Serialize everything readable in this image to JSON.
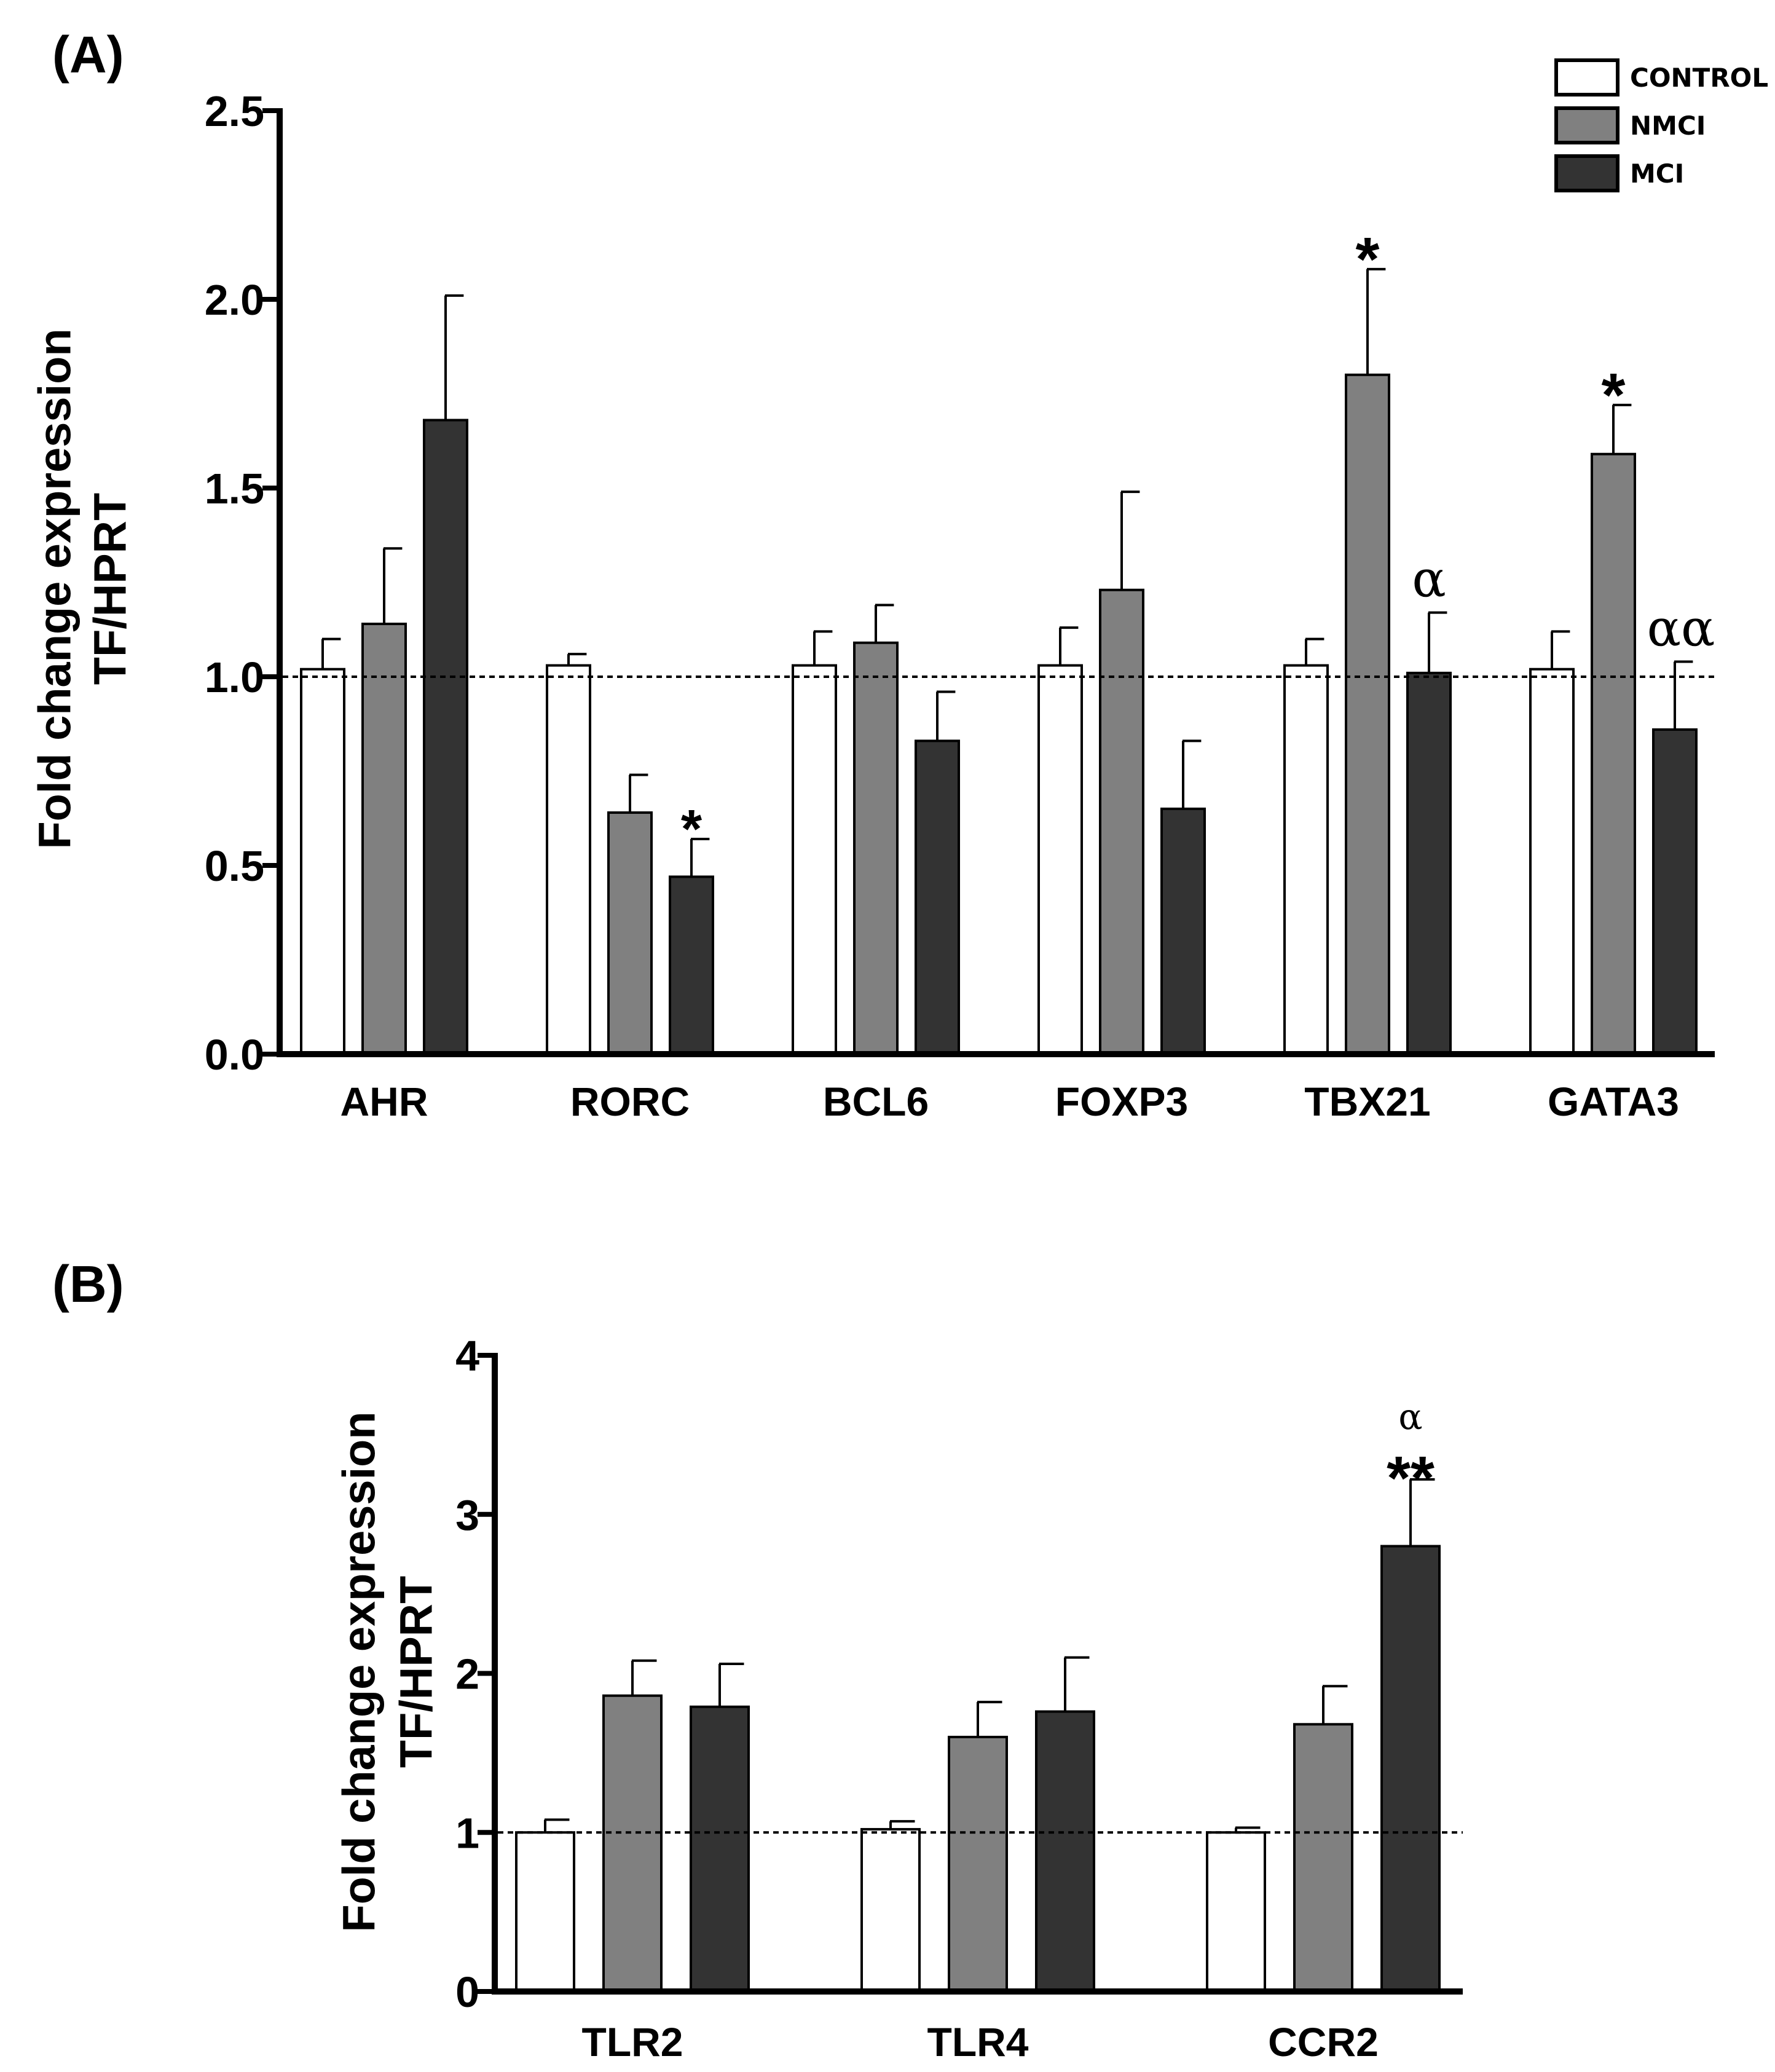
{
  "legend": {
    "entries": [
      {
        "label": "CONTROL",
        "color": "#ffffff"
      },
      {
        "label": "NMCI",
        "color": "#808080"
      },
      {
        "label": "MCI",
        "color": "#333333"
      }
    ]
  },
  "chart_data": [
    {
      "panel_label": "(A)",
      "type": "bar",
      "ylabel": [
        "Fold change expression",
        "TF/HPRT"
      ],
      "ylim": [
        0,
        2.5
      ],
      "yticks": [
        "0.0",
        "0.5",
        "1.0",
        "1.5",
        "2.0",
        "2.5"
      ],
      "reference_line": 1.0,
      "categories": [
        "AHR",
        "RORC",
        "BCL6",
        "FOXP3",
        "TBX21",
        "GATA3"
      ],
      "series": [
        {
          "name": "CONTROL",
          "color": "#ffffff",
          "values": [
            1.02,
            1.03,
            1.03,
            1.03,
            1.03,
            1.02
          ],
          "errors": [
            0.08,
            0.03,
            0.09,
            0.1,
            0.07,
            0.1
          ]
        },
        {
          "name": "NMCI",
          "color": "#808080",
          "values": [
            1.14,
            0.64,
            1.09,
            1.23,
            1.8,
            1.59
          ],
          "errors": [
            0.2,
            0.1,
            0.1,
            0.26,
            0.28,
            0.13
          ]
        },
        {
          "name": "MCI",
          "color": "#333333",
          "values": [
            1.68,
            0.47,
            0.83,
            0.65,
            1.01,
            0.86
          ],
          "errors": [
            0.33,
            0.1,
            0.13,
            0.18,
            0.16,
            0.18
          ]
        }
      ],
      "annotations": [
        {
          "category": "RORC",
          "series": "MCI",
          "text": "*"
        },
        {
          "category": "TBX21",
          "series": "NMCI",
          "text": "*"
        },
        {
          "category": "TBX21",
          "series": "MCI",
          "text": "α"
        },
        {
          "category": "GATA3",
          "series": "NMCI",
          "text": "*"
        },
        {
          "category": "GATA3",
          "series": "MCI",
          "text": "αα"
        }
      ]
    },
    {
      "panel_label": "(B)",
      "type": "bar",
      "ylabel": [
        "Fold change expression",
        "TF/HPRT"
      ],
      "ylim": [
        0,
        4
      ],
      "yticks": [
        "0",
        "1",
        "2",
        "3",
        "4"
      ],
      "reference_line": 1.0,
      "categories": [
        "TLR2",
        "TLR4",
        "CCR2"
      ],
      "series": [
        {
          "name": "CONTROL",
          "color": "#ffffff",
          "values": [
            1.0,
            1.02,
            1.0
          ],
          "errors": [
            0.08,
            0.05,
            0.03
          ]
        },
        {
          "name": "NMCI",
          "color": "#808080",
          "values": [
            1.86,
            1.6,
            1.68
          ],
          "errors": [
            0.22,
            0.22,
            0.24
          ]
        },
        {
          "name": "MCI",
          "color": "#333333",
          "values": [
            1.79,
            1.76,
            2.8
          ],
          "errors": [
            0.27,
            0.34,
            0.42
          ]
        }
      ],
      "annotations": [
        {
          "category": "CCR2",
          "series": "MCI",
          "text": "**"
        },
        {
          "category": "CCR2",
          "series": "MCI",
          "text": "α"
        }
      ]
    }
  ]
}
